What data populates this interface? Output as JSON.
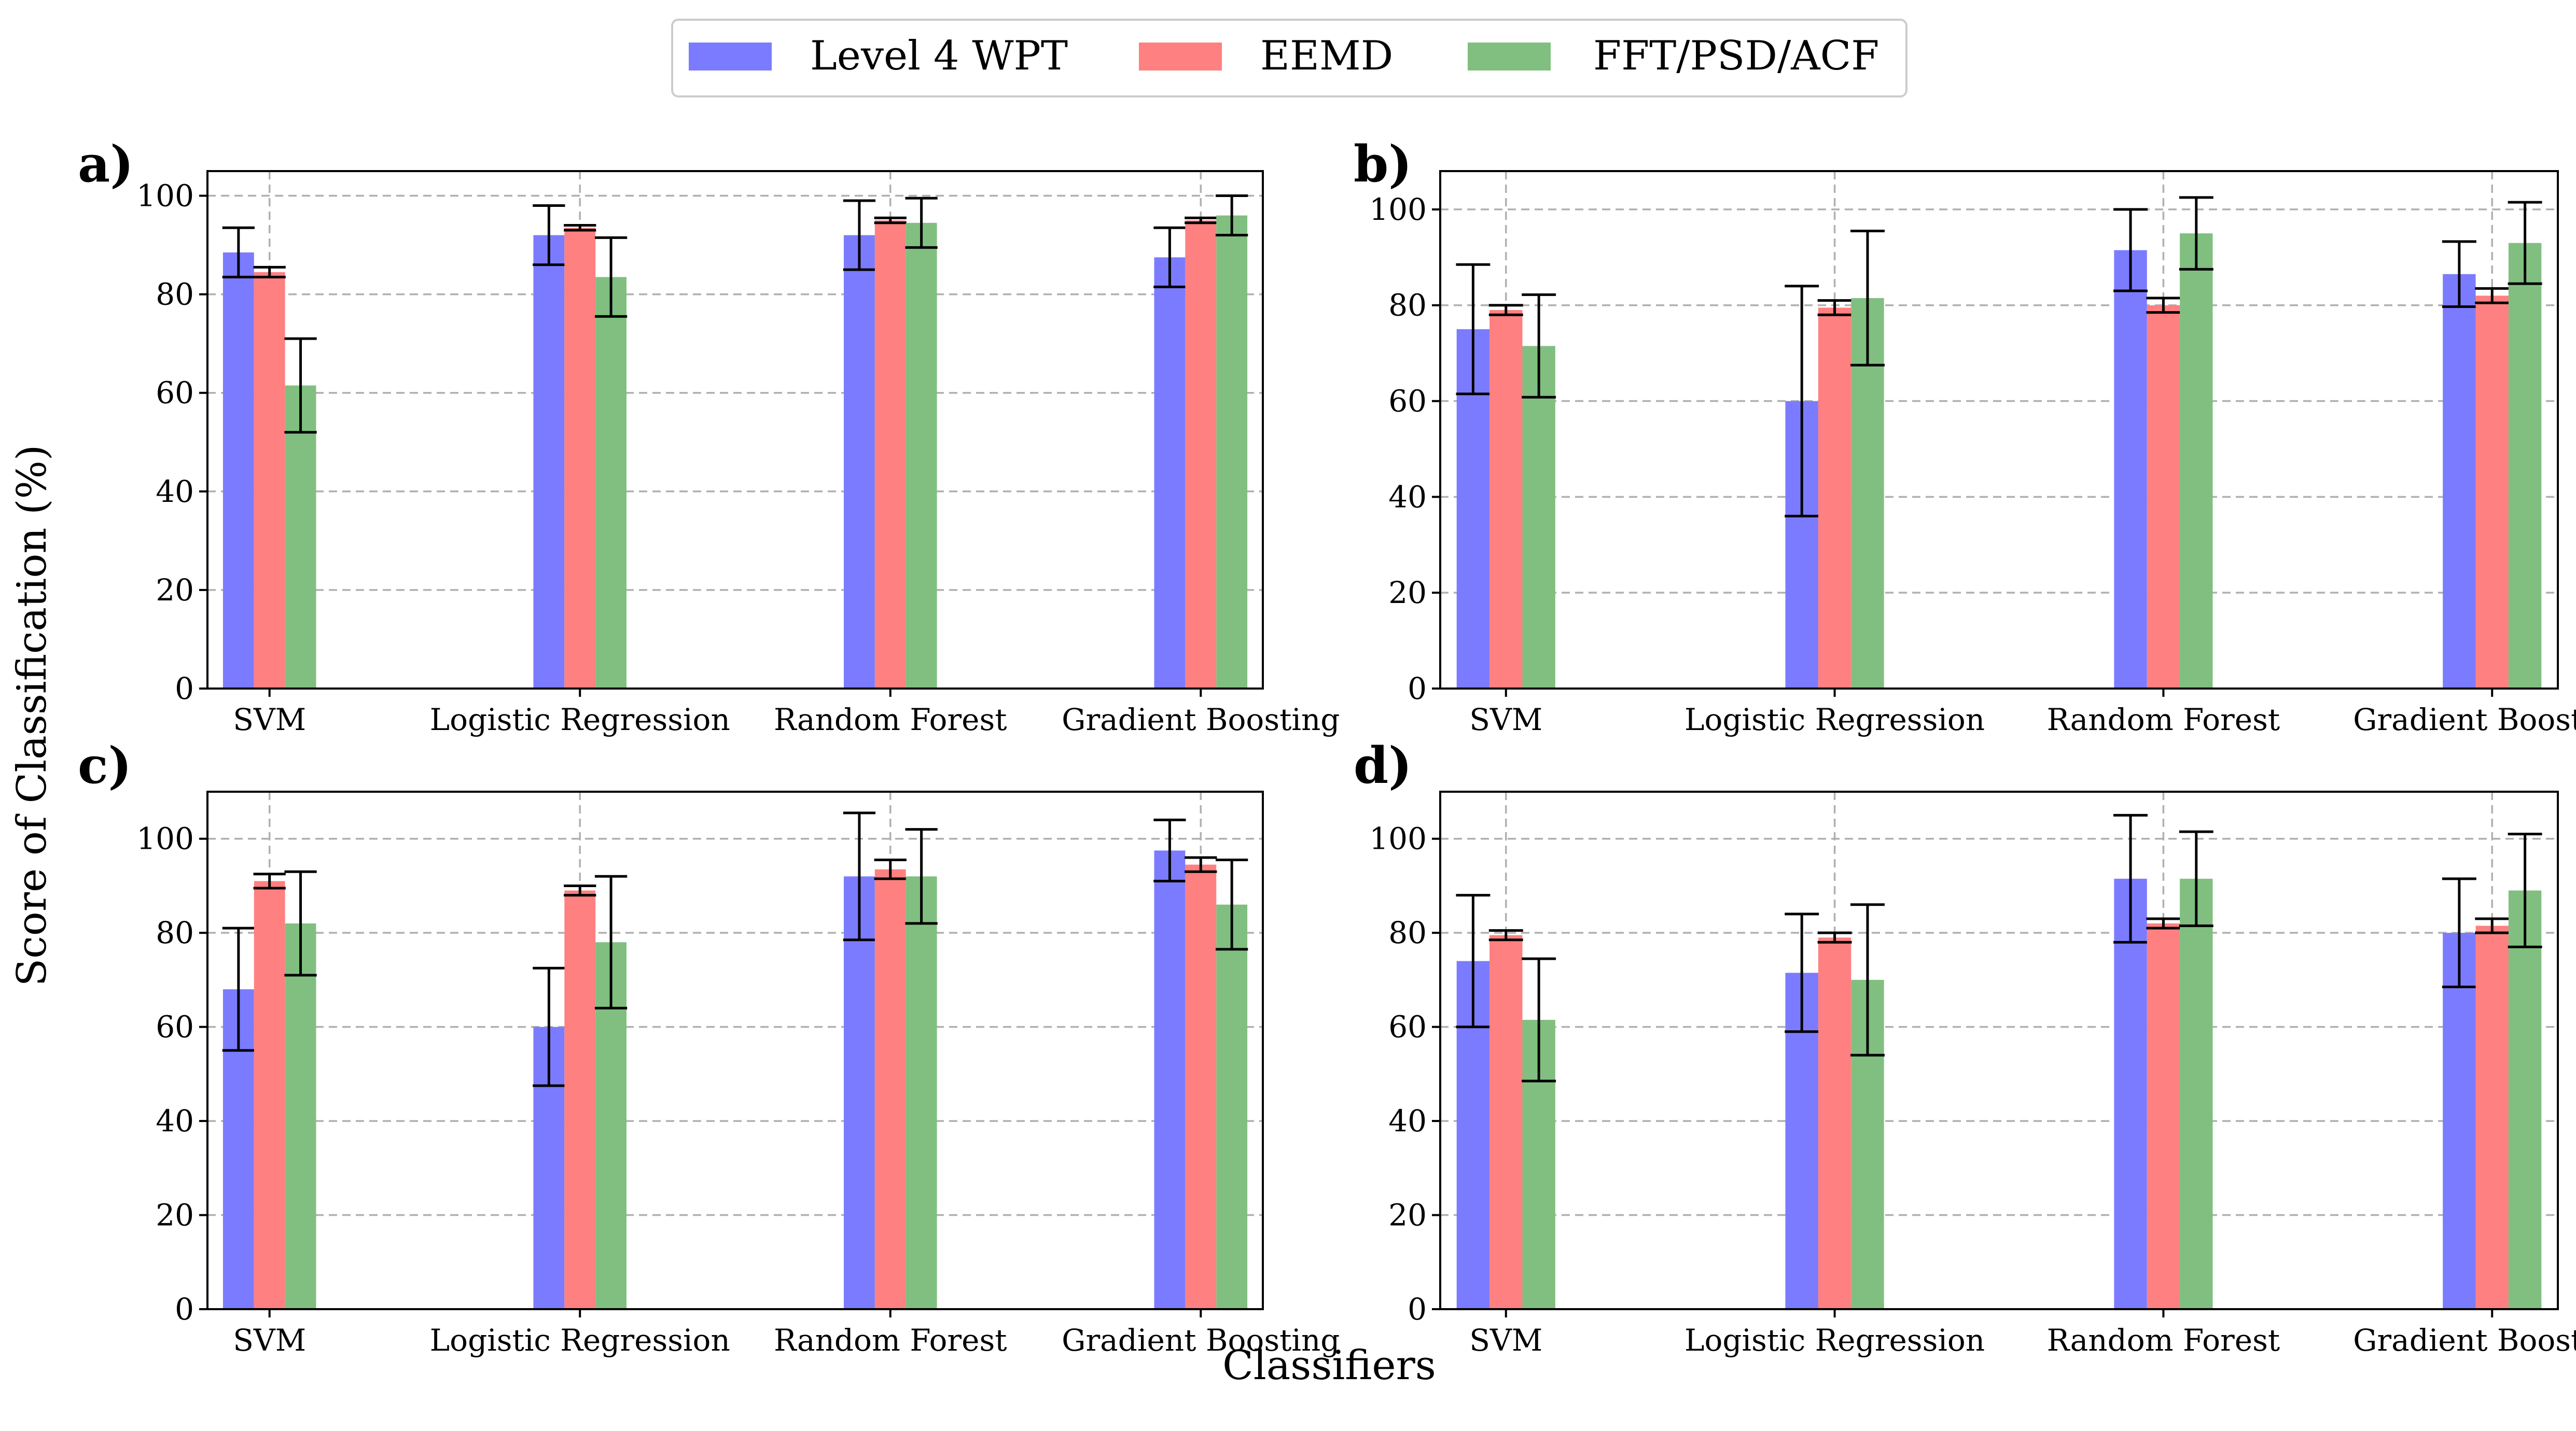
{
  "colors": {
    "wpt": "#7b7bff",
    "eemd": "#ff8080",
    "fft": "#80bf80"
  },
  "legend": [
    {
      "label": "Level 4 WPT",
      "color": "#7b7bff"
    },
    {
      "label": "EEMD",
      "color": "#ff8080"
    },
    {
      "label": "FFT/PSD/ACF",
      "color": "#80bf80"
    }
  ],
  "labels": {
    "ylabel": "Score of Classification (%)",
    "xlabel": "Classifiers"
  },
  "chart_data": [
    {
      "panel": "a)",
      "type": "bar",
      "categories": [
        "SVM",
        "Logistic Regression",
        "Random Forest",
        "Gradient Boosting"
      ],
      "ylim": [
        0,
        105
      ],
      "yticks": [
        0,
        20,
        40,
        60,
        80,
        100
      ],
      "grid": true,
      "series": [
        {
          "name": "Level 4 WPT",
          "values": [
            88.5,
            92.0,
            92.0,
            87.5
          ],
          "errors": [
            5.0,
            6.0,
            7.0,
            6.0
          ]
        },
        {
          "name": "EEMD",
          "values": [
            84.5,
            93.5,
            95.0,
            95.0
          ],
          "errors": [
            1.0,
            0.5,
            0.5,
            0.5
          ]
        },
        {
          "name": "FFT/PSD/ACF",
          "values": [
            61.5,
            83.5,
            94.5,
            96.0
          ],
          "errors": [
            9.5,
            8.0,
            5.0,
            4.0
          ]
        }
      ]
    },
    {
      "panel": "b)",
      "type": "bar",
      "categories": [
        "SVM",
        "Logistic Regression",
        "Random Forest",
        "Gradient Boosting"
      ],
      "ylim": [
        0,
        108
      ],
      "yticks": [
        0,
        20,
        40,
        60,
        80,
        100
      ],
      "grid": true,
      "series": [
        {
          "name": "Level 4 WPT",
          "values": [
            75.0,
            60.0,
            91.5,
            86.5
          ],
          "errors": [
            13.5,
            24.0,
            8.5,
            6.8
          ]
        },
        {
          "name": "EEMD",
          "values": [
            79.0,
            79.5,
            80.0,
            82.0
          ],
          "errors": [
            1.0,
            1.5,
            1.5,
            1.5
          ]
        },
        {
          "name": "FFT/PSD/ACF",
          "values": [
            71.5,
            81.5,
            95.0,
            93.0
          ],
          "errors": [
            10.7,
            14.0,
            7.5,
            8.5
          ]
        }
      ]
    },
    {
      "panel": "c)",
      "type": "bar",
      "categories": [
        "SVM",
        "Logistic Regression",
        "Random Forest",
        "Gradient Boosting"
      ],
      "ylim": [
        0,
        110
      ],
      "yticks": [
        0,
        20,
        40,
        60,
        80,
        100
      ],
      "grid": true,
      "series": [
        {
          "name": "Level 4 WPT",
          "values": [
            68.0,
            60.0,
            92.0,
            97.5
          ],
          "errors": [
            13.0,
            12.5,
            13.5,
            6.5
          ]
        },
        {
          "name": "EEMD",
          "values": [
            91.0,
            89.0,
            93.5,
            94.5
          ],
          "errors": [
            1.5,
            1.0,
            2.0,
            1.5
          ]
        },
        {
          "name": "FFT/PSD/ACF",
          "values": [
            82.0,
            78.0,
            92.0,
            86.0
          ],
          "errors": [
            11.0,
            14.0,
            10.0,
            9.5
          ]
        }
      ]
    },
    {
      "panel": "d)",
      "type": "bar",
      "categories": [
        "SVM",
        "Logistic Regression",
        "Random Forest",
        "Gradient Boosting"
      ],
      "ylim": [
        0,
        110
      ],
      "yticks": [
        0,
        20,
        40,
        60,
        80,
        100
      ],
      "grid": true,
      "series": [
        {
          "name": "Level 4 WPT",
          "values": [
            74.0,
            71.5,
            91.5,
            80.0
          ],
          "errors": [
            14.0,
            12.5,
            13.5,
            11.5
          ]
        },
        {
          "name": "EEMD",
          "values": [
            79.5,
            79.0,
            82.0,
            81.5
          ],
          "errors": [
            1.0,
            1.0,
            1.0,
            1.5
          ]
        },
        {
          "name": "FFT/PSD/ACF",
          "values": [
            61.5,
            70.0,
            91.5,
            89.0
          ],
          "errors": [
            13.0,
            16.0,
            10.0,
            12.0
          ]
        }
      ]
    }
  ]
}
